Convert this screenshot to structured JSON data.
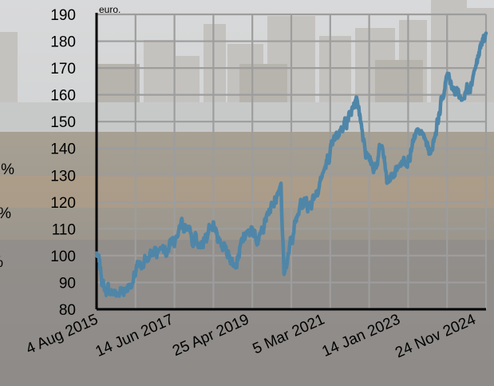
{
  "chart_data": {
    "type": "line",
    "unit_label": "euro.",
    "y_ticks": [
      80,
      90,
      100,
      110,
      120,
      130,
      140,
      150,
      160,
      170,
      180,
      190
    ],
    "ylim": [
      80,
      190
    ],
    "x_tick_labels": [
      "4 Aug 2015",
      "14 Jun 2017",
      "25 Apr 2019",
      "5 Mar 2021",
      "14 Jan 2023",
      "24 Nov 2024"
    ],
    "x_ticks": [
      "2015-08-04",
      "2017-06-14",
      "2019-04-25",
      "2021-03-05",
      "2023-01-14",
      "2024-11-24"
    ],
    "xlim": [
      "2015-08-04",
      "2025-03-10"
    ],
    "grid": true,
    "line_color": "#4f86a8",
    "series": [
      {
        "x": [
          "2015-08-04",
          "2015-10-15",
          "2016-02-11",
          "2016-06-27",
          "2016-08-15",
          "2017-03-01",
          "2017-08-01",
          "2017-10-27",
          "2018-02-09",
          "2018-05-30",
          "2018-10-01",
          "2018-12-24",
          "2019-04-25",
          "2019-08-15",
          "2020-02-19",
          "2020-03-18",
          "2020-08-15",
          "2020-10-30",
          "2021-03-05",
          "2021-08-15",
          "2021-12-01",
          "2022-01-04",
          "2022-03-08",
          "2022-06-01",
          "2022-08-16",
          "2022-09-30",
          "2023-01-14",
          "2023-07-31",
          "2023-10-27",
          "2024-03-28",
          "2024-08-05",
          "2024-11-24",
          "2025-03-10"
        ],
        "y": [
          101,
          87,
          86,
          90,
          96,
          103,
          107,
          111,
          103,
          110,
          104,
          97,
          109,
          108,
          127,
          93,
          121,
          119,
          131,
          148,
          155,
          158,
          143,
          131,
          141,
          127,
          133,
          146,
          138,
          168,
          158,
          169,
          183
        ]
      }
    ],
    "side_labels": [
      "%",
      "%",
      "%"
    ]
  }
}
